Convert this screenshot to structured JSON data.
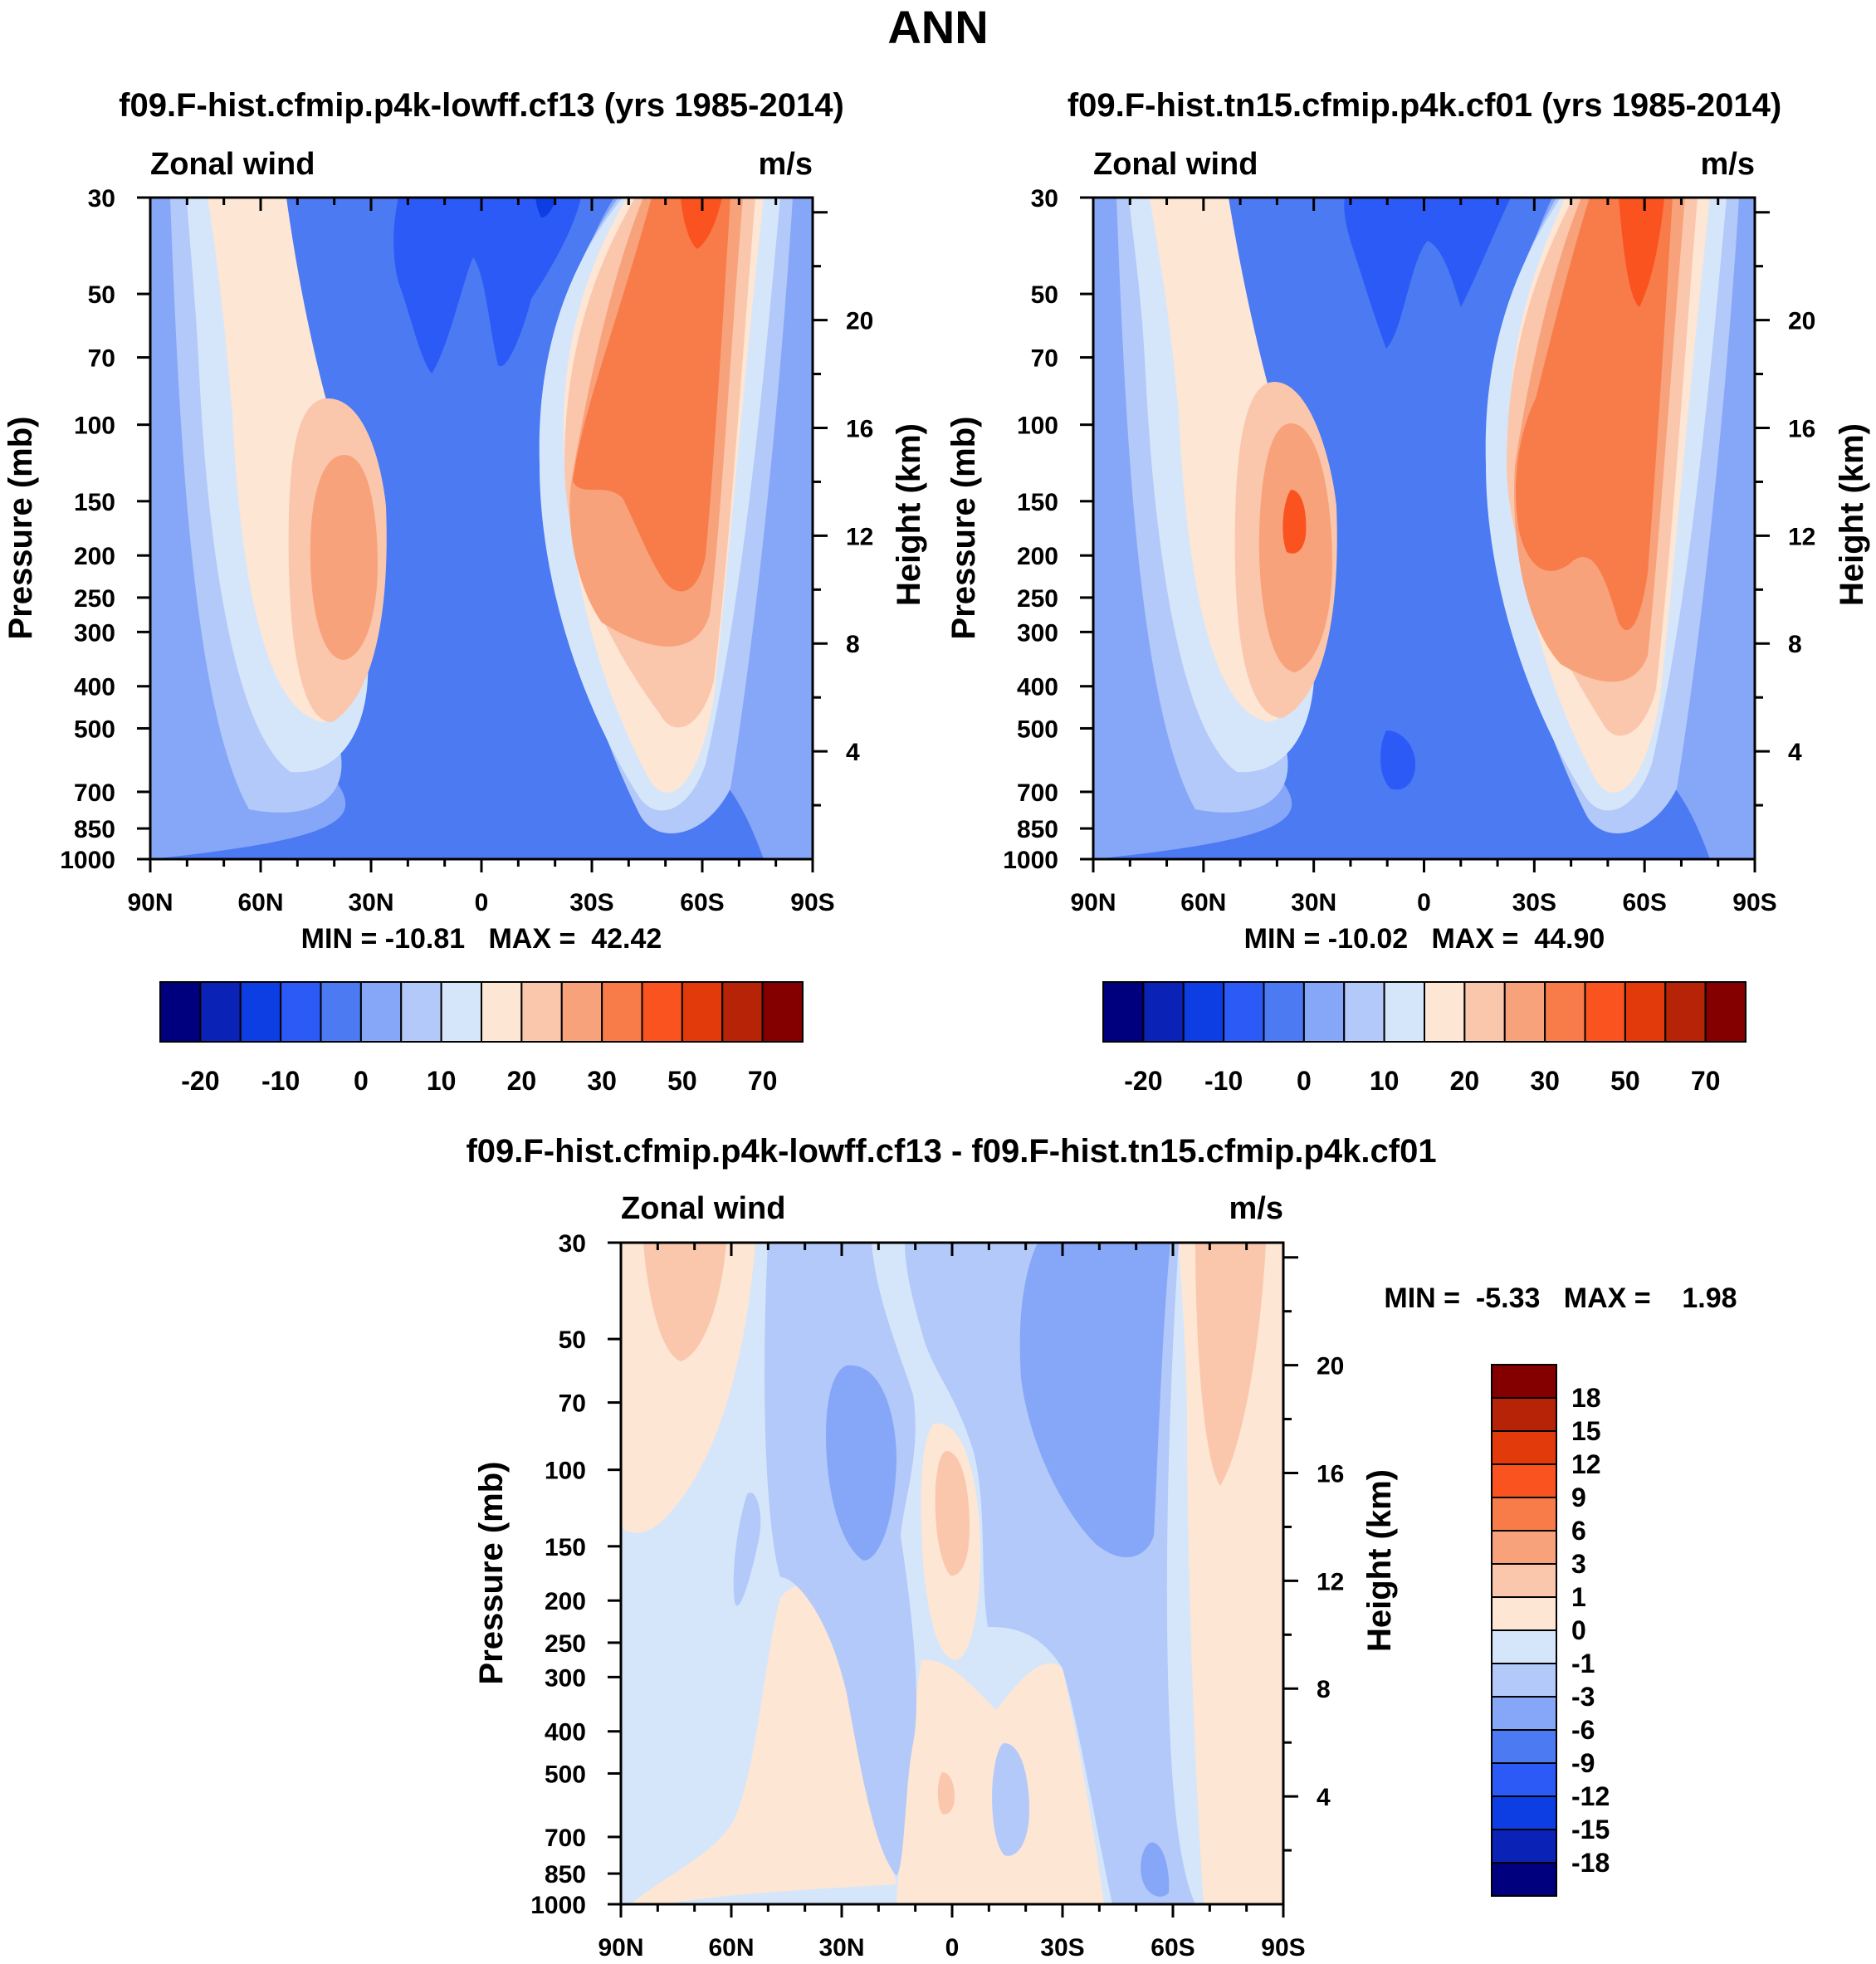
{
  "figure_title": "ANN",
  "chart_data": [
    {
      "type": "heatmap",
      "title": "f09.F-hist.cfmip.p4k-lowff.cf13 (yrs 1985-2014)",
      "left_string": "Zonal wind",
      "right_string": "m/s",
      "ylabel": "Pressure (mb)",
      "ylabel_right": "Height (km)",
      "x_ticklabels": [
        "90N",
        "60N",
        "30N",
        "0",
        "30S",
        "60S",
        "90S"
      ],
      "y_ticklabels": [
        "30",
        "50",
        "70",
        "100",
        "150",
        "200",
        "250",
        "300",
        "400",
        "500",
        "700",
        "850",
        "1000"
      ],
      "y_right_ticklabels": [
        "20",
        "16",
        "12",
        "8",
        "4"
      ],
      "stats_text": "MIN = -10.81   MAX =  42.42",
      "min": -10.81,
      "max": 42.42,
      "colorbar_ticklabels": [
        "-20",
        "-10",
        "0",
        "10",
        "20",
        "30",
        "50",
        "70"
      ],
      "jets": {
        "nh_max": 27,
        "sh_max": 42.42,
        "equatorial_min": -10.81
      }
    },
    {
      "type": "heatmap",
      "title": "f09.F-hist.tn15.cfmip.p4k.cf01 (yrs 1985-2014)",
      "left_string": "Zonal wind",
      "right_string": "m/s",
      "ylabel": "Pressure (mb)",
      "ylabel_right": "Height (km)",
      "x_ticklabels": [
        "90N",
        "60N",
        "30N",
        "0",
        "30S",
        "60S",
        "90S"
      ],
      "y_ticklabels": [
        "30",
        "50",
        "70",
        "100",
        "150",
        "200",
        "250",
        "300",
        "400",
        "500",
        "700",
        "850",
        "1000"
      ],
      "y_right_ticklabels": [
        "20",
        "16",
        "12",
        "8",
        "4"
      ],
      "stats_text": "MIN = -10.02   MAX =  44.90",
      "min": -10.02,
      "max": 44.9,
      "colorbar_ticklabels": [
        "-20",
        "-10",
        "0",
        "10",
        "20",
        "30",
        "50",
        "70"
      ],
      "jets": {
        "nh_max": 31,
        "sh_max": 44.9,
        "equatorial_min": -10.02
      }
    },
    {
      "type": "heatmap",
      "title": "f09.F-hist.cfmip.p4k-lowff.cf13 - f09.F-hist.tn15.cfmip.p4k.cf01",
      "left_string": "Zonal wind",
      "right_string": "m/s",
      "ylabel": "Pressure (mb)",
      "ylabel_right": "Height (km)",
      "x_ticklabels": [
        "90N",
        "60N",
        "30N",
        "0",
        "30S",
        "60S",
        "90S"
      ],
      "y_ticklabels": [
        "30",
        "50",
        "70",
        "100",
        "150",
        "200",
        "250",
        "300",
        "400",
        "500",
        "700",
        "850",
        "1000"
      ],
      "y_right_ticklabels": [
        "20",
        "16",
        "12",
        "8",
        "4"
      ],
      "stats_text": "MIN =  -5.33   MAX =    1.98",
      "min": -5.33,
      "max": 1.98,
      "colorbar_ticklabels": [
        "18",
        "15",
        "12",
        "9",
        "6",
        "3",
        "1",
        "0",
        "-1",
        "-3",
        "-6",
        "-9",
        "-12",
        "-15",
        "-18"
      ]
    }
  ],
  "colorbar_colors": [
    "#00007f",
    "#0a22b6",
    "#0c3ee4",
    "#2b5af7",
    "#4b7af3",
    "#86a6f8",
    "#b3c9f9",
    "#d6e6fa",
    "#fde6d4",
    "#fbc7ac",
    "#f8a27b",
    "#f87c4a",
    "#fa5320",
    "#e33a0b",
    "#b62306",
    "#840000"
  ]
}
